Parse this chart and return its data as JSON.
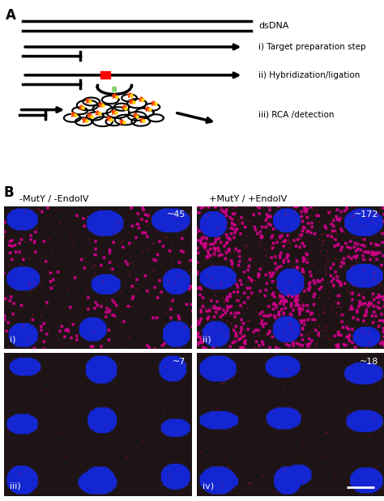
{
  "title_A": "A",
  "title_B": "B",
  "label_dsDNA": "dsDNA",
  "label_i": "i) Target preparation step",
  "label_ii": "ii) Hybridization/ligation",
  "label_iii": "iii) RCA /detection",
  "label_neg": "-MutY / -EndoIV",
  "label_pos": "+MutY / +EndoIV",
  "count_i": "~45",
  "count_ii": "~172",
  "count_iii": "~7",
  "count_iv": "~18",
  "roman_i": "i)",
  "roman_ii": "ii)",
  "roman_iii": "iii)",
  "roman_iv": "iv)",
  "bg_color": "#ffffff",
  "line_color": "#000000",
  "text_color": "#000000"
}
